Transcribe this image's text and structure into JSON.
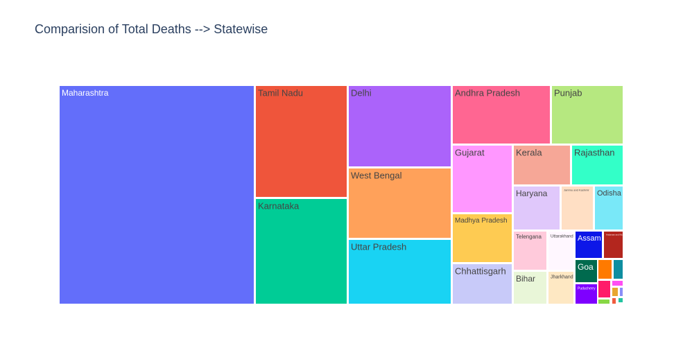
{
  "chart_data": {
    "type": "treemap",
    "title": "Comparision of Total Deaths --> Statewise",
    "items": [
      {
        "label": "Maharashtra",
        "color": "#636efa",
        "text_color": "#ffffff"
      },
      {
        "label": "Tamil Nadu",
        "color": "#ef553b",
        "text_color": "#444444"
      },
      {
        "label": "Karnataka",
        "color": "#00cc96",
        "text_color": "#444444"
      },
      {
        "label": "Delhi",
        "color": "#ab63fa",
        "text_color": "#444444"
      },
      {
        "label": "West Bengal",
        "color": "#ffa15a",
        "text_color": "#444444"
      },
      {
        "label": "Uttar Pradesh",
        "color": "#19d3f3",
        "text_color": "#444444"
      },
      {
        "label": "Andhra Pradesh",
        "color": "#ff6692",
        "text_color": "#444444"
      },
      {
        "label": "Punjab",
        "color": "#b6e880",
        "text_color": "#444444"
      },
      {
        "label": "Gujarat",
        "color": "#ff97ff",
        "text_color": "#444444"
      },
      {
        "label": "Kerala",
        "color": "#f6a797",
        "text_color": "#444444"
      },
      {
        "label": "Rajasthan",
        "color": "#33ffc8",
        "text_color": "#444444"
      },
      {
        "label": "Madhya Pradesh",
        "color": "#fecb52",
        "text_color": "#444444"
      },
      {
        "label": "Haryana",
        "color": "#e0c8fb",
        "text_color": "#444444"
      },
      {
        "label": "Jammu and Kashmir",
        "color": "#ffdfc4",
        "text_color": "#444444"
      },
      {
        "label": "Odisha",
        "color": "#79e8f8",
        "text_color": "#444444"
      },
      {
        "label": "Chhattisgarh",
        "color": "#c8caf9",
        "text_color": "#444444"
      },
      {
        "label": "Telengana",
        "color": "#ffcadb",
        "text_color": "#444444"
      },
      {
        "label": "Uttarakhand",
        "color": "#fff7ff",
        "text_color": "#444444"
      },
      {
        "label": "Assam",
        "color": "#0d17e8",
        "text_color": "#ffffff"
      },
      {
        "label": "Andaman and Nicobar Islands",
        "color": "#b3261e",
        "text_color": "#ffffff"
      },
      {
        "label": "Bihar",
        "color": "#e9f6d8",
        "text_color": "#444444"
      },
      {
        "label": "Jharkhand",
        "color": "#fee8c3",
        "text_color": "#444444"
      },
      {
        "label": "Goa",
        "color": "#006a4e",
        "text_color": "#ffffff"
      },
      {
        "label": "",
        "color": "#ff7a00",
        "text_color": "#ffffff"
      },
      {
        "label": "",
        "color": "#0f8ea0",
        "text_color": "#ffffff"
      },
      {
        "label": "Puducherry",
        "color": "#7e00ff",
        "text_color": "#ffffff"
      },
      {
        "label": "",
        "color": "#ff1b6a",
        "text_color": "#ffffff"
      },
      {
        "label": "",
        "color": "#ff4ff3",
        "text_color": "#ffffff"
      },
      {
        "label": "",
        "color": "#e8a630",
        "text_color": "#ffffff"
      },
      {
        "label": "",
        "color": "#8a8ef8",
        "text_color": "#ffffff"
      },
      {
        "label": "",
        "color": "#88d845",
        "text_color": "#ffffff"
      },
      {
        "label": "",
        "color": "#f05d3f",
        "text_color": "#ffffff"
      },
      {
        "label": "",
        "color": "#23c4a0",
        "text_color": "#ffffff"
      }
    ]
  }
}
